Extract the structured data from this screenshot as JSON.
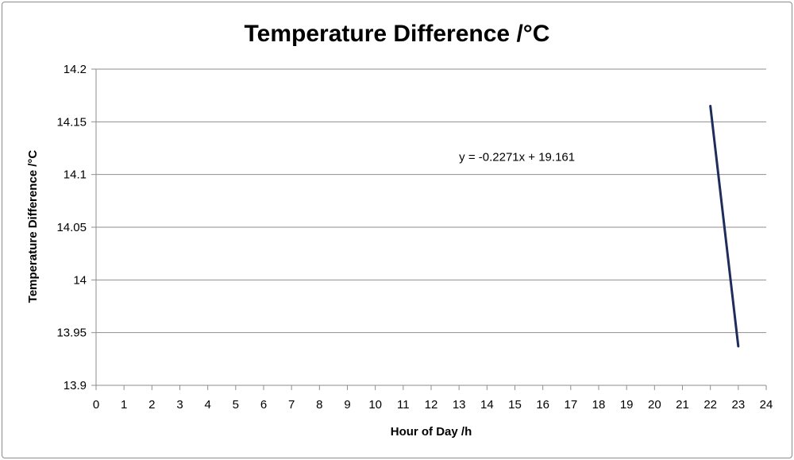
{
  "chart_data": {
    "type": "line",
    "title": "Temperature Difference /°C",
    "xlabel": "Hour of Day /h",
    "ylabel": "Temperature Difference /°C",
    "xlim": [
      0,
      24
    ],
    "ylim": [
      13.9,
      14.2
    ],
    "x_ticks": [
      "0",
      "1",
      "2",
      "3",
      "4",
      "5",
      "6",
      "7",
      "8",
      "9",
      "10",
      "11",
      "12",
      "13",
      "14",
      "15",
      "16",
      "17",
      "18",
      "19",
      "20",
      "21",
      "22",
      "23",
      "24"
    ],
    "y_ticks": [
      "13.9",
      "13.95",
      "14",
      "14.05",
      "14.1",
      "14.15",
      "14.2"
    ],
    "grid": "horizontal",
    "legend": "none",
    "series": [
      {
        "x": [
          22,
          23
        ],
        "y": [
          14.165,
          13.937
        ],
        "color": "#1f2d5c"
      }
    ],
    "annotations": [
      {
        "text": "y = -0.2271x + 19.161",
        "x": 13.0,
        "y": 14.113
      }
    ]
  }
}
